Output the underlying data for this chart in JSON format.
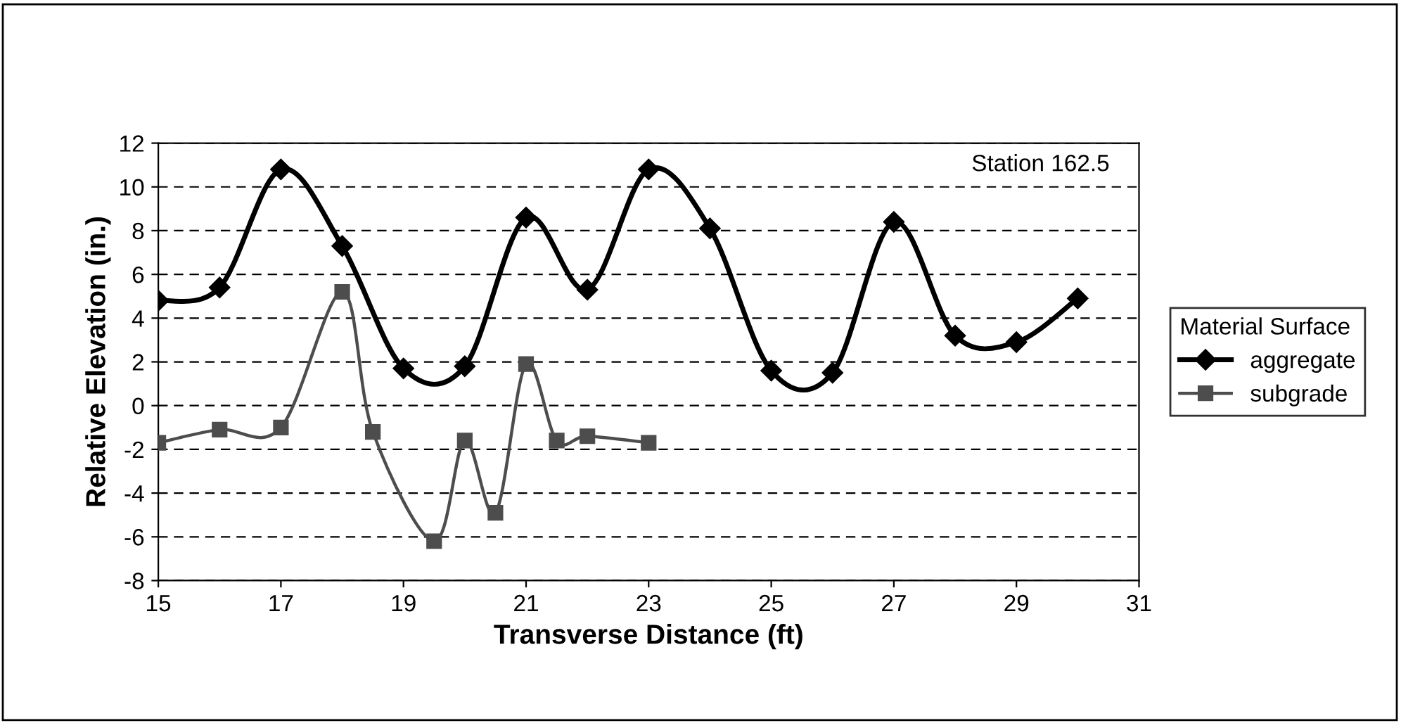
{
  "chart_data": {
    "type": "line",
    "xlabel": "Transverse Distance (ft)",
    "ylabel": "Relative Elevation (in.)",
    "legend_title": "Material Surface",
    "annotations": [
      "Station 162.5"
    ],
    "series": [
      {
        "name": "aggregate",
        "color": "#000000",
        "marker": "diamond",
        "x": [
          15,
          16,
          17,
          18,
          19,
          20,
          21,
          22,
          23,
          24,
          25,
          26,
          27,
          28,
          29,
          30
        ],
        "values": [
          4.8,
          5.4,
          10.8,
          7.3,
          1.7,
          1.8,
          8.6,
          5.3,
          10.8,
          8.1,
          1.6,
          1.5,
          8.4,
          3.2,
          2.9,
          4.9
        ]
      },
      {
        "name": "subgrade",
        "color": "#4d4d4d",
        "marker": "square",
        "x": [
          15,
          16,
          17,
          18,
          18.5,
          19.5,
          20,
          20.5,
          21,
          21.5,
          22,
          23
        ],
        "values": [
          -1.7,
          -1.1,
          -1.0,
          5.2,
          -1.2,
          -6.2,
          -1.6,
          -4.9,
          1.9,
          -1.6,
          -1.4,
          -1.7
        ]
      }
    ],
    "xlim": [
      15,
      31
    ],
    "xticks": [
      15,
      17,
      19,
      21,
      23,
      25,
      27,
      29,
      31
    ],
    "ylim": [
      -8,
      12
    ],
    "yticks": [
      -8,
      -6,
      -4,
      -2,
      0,
      2,
      4,
      6,
      8,
      10,
      12
    ],
    "grid": "y",
    "legend": "right",
    "line_style": "solid"
  }
}
